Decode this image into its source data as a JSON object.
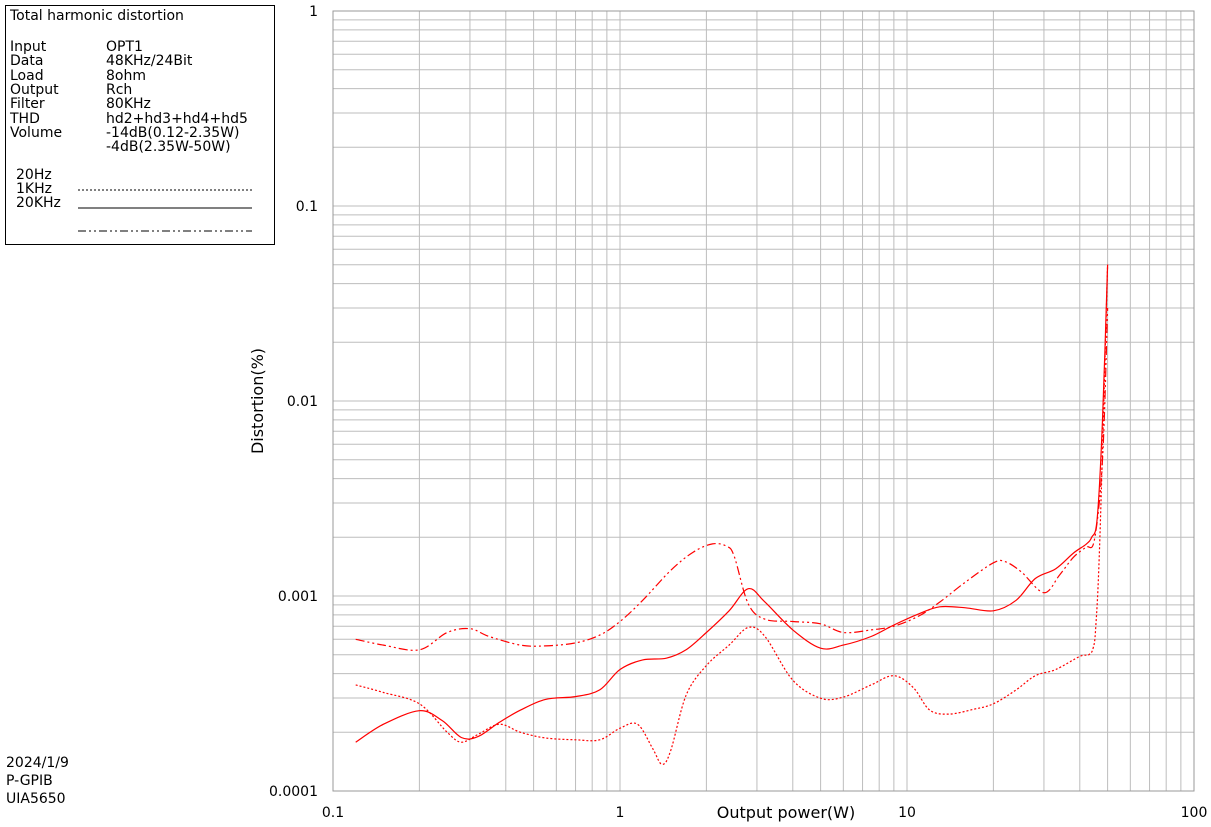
{
  "chart_data": {
    "type": "line",
    "title": "Total harmonic distortion",
    "xlabel": "Output power(W)",
    "ylabel": "Distortion(%)",
    "xscale": "log",
    "yscale": "log",
    "xlim": [
      0.1,
      100
    ],
    "ylim": [
      0.0001,
      1
    ],
    "x_tick_labels": [
      "0.1",
      "1",
      "10",
      "100"
    ],
    "y_tick_labels": [
      "0.0001",
      "0.001",
      "0.01",
      "0.1",
      "1"
    ],
    "grid": true,
    "legend_position": "top-left",
    "info": [
      {
        "key": "Input",
        "value": "OPT1"
      },
      {
        "key": "Data",
        "value": "48KHz/24Bit"
      },
      {
        "key": "Load",
        "value": "8ohm"
      },
      {
        "key": "Output",
        "value": "Rch"
      },
      {
        "key": "Filter",
        "value": "80KHz"
      },
      {
        "key": "THD",
        "value": "hd2+hd3+hd4+hd5"
      },
      {
        "key": "Volume",
        "value": "-14dB(0.12-2.35W)"
      },
      {
        "key": "",
        "value": "-4dB(2.35W-50W)"
      }
    ],
    "series": [
      {
        "name": "20Hz",
        "color": "#ff0000",
        "style": "dotted",
        "x": [
          0.12,
          0.15,
          0.2,
          0.25,
          0.28,
          0.32,
          0.38,
          0.45,
          0.55,
          0.7,
          0.85,
          1.0,
          1.15,
          1.3,
          1.4,
          1.5,
          1.7,
          2.0,
          2.4,
          2.8,
          3.2,
          4.0,
          5.0,
          6.0,
          7.5,
          9.0,
          10.5,
          12,
          14,
          17,
          20,
          24,
          28,
          33,
          40,
          43,
          44.5,
          45.5,
          47,
          50
        ],
        "y": [
          0.00035,
          0.00032,
          0.00028,
          0.0002,
          0.000178,
          0.000195,
          0.00022,
          0.0002,
          0.000187,
          0.000183,
          0.000183,
          0.00021,
          0.00022,
          0.000165,
          0.000137,
          0.00016,
          0.00031,
          0.00044,
          0.00056,
          0.00069,
          0.00062,
          0.00037,
          0.000299,
          0.000303,
          0.00035,
          0.00039,
          0.00034,
          0.00026,
          0.000248,
          0.000262,
          0.00028,
          0.00033,
          0.00039,
          0.00042,
          0.00049,
          0.0005,
          0.00054,
          0.0007,
          0.002,
          0.05
        ]
      },
      {
        "name": "1KHz",
        "color": "#ff0000",
        "style": "solid",
        "x": [
          0.12,
          0.15,
          0.2,
          0.24,
          0.28,
          0.32,
          0.38,
          0.45,
          0.55,
          0.7,
          0.85,
          1.0,
          1.2,
          1.45,
          1.7,
          2.0,
          2.4,
          2.8,
          3.2,
          4.0,
          5.0,
          6.0,
          7.5,
          9.0,
          11,
          13,
          16,
          20,
          24,
          28,
          33,
          38,
          42,
          44,
          46,
          48,
          50
        ],
        "y": [
          0.000178,
          0.00022,
          0.000258,
          0.00023,
          0.000188,
          0.00019,
          0.000225,
          0.00026,
          0.000295,
          0.000305,
          0.00033,
          0.00042,
          0.00047,
          0.00048,
          0.00053,
          0.00065,
          0.00084,
          0.00109,
          0.00093,
          0.00067,
          0.00054,
          0.00056,
          0.00062,
          0.00071,
          0.00081,
          0.00088,
          0.00087,
          0.00084,
          0.00095,
          0.00123,
          0.00138,
          0.00166,
          0.00184,
          0.002,
          0.0025,
          0.008,
          0.05
        ]
      },
      {
        "name": "20KHz",
        "color": "#ff0000",
        "style": "dash-dot-dot",
        "x": [
          0.12,
          0.15,
          0.2,
          0.25,
          0.3,
          0.35,
          0.45,
          0.55,
          0.7,
          0.85,
          1.0,
          1.2,
          1.5,
          1.8,
          2.1,
          2.35,
          2.5,
          2.8,
          3.2,
          4.0,
          5.0,
          6.0,
          7.5,
          9.0,
          11,
          13,
          16,
          20,
          22,
          25,
          30,
          34,
          38,
          42,
          45,
          48,
          50
        ],
        "y": [
          0.0006,
          0.00056,
          0.00053,
          0.00065,
          0.00068,
          0.00062,
          0.00056,
          0.000555,
          0.000575,
          0.00063,
          0.00074,
          0.00095,
          0.00135,
          0.00168,
          0.00185,
          0.0018,
          0.0016,
          0.00091,
          0.00076,
          0.00074,
          0.00072,
          0.00065,
          0.00067,
          0.0007,
          0.00079,
          0.00093,
          0.00118,
          0.00148,
          0.0015,
          0.00133,
          0.00104,
          0.00128,
          0.00158,
          0.00178,
          0.00195,
          0.005,
          0.03
        ]
      }
    ]
  },
  "stamp": {
    "date": "2024/1/9",
    "line2": "P-GPIB",
    "line3": "UIA5650"
  }
}
